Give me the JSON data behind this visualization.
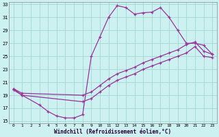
{
  "xlabel": "Windchill (Refroidissement éolien,°C)",
  "bg_color": "#cdf0f0",
  "line_color": "#993399",
  "grid_color": "#a8dada",
  "ylim": [
    15,
    33
  ],
  "xlim": [
    -0.5,
    23.5
  ],
  "yticks": [
    15,
    17,
    19,
    21,
    23,
    25,
    27,
    29,
    31,
    33
  ],
  "xticks": [
    0,
    1,
    2,
    3,
    4,
    5,
    6,
    7,
    8,
    9,
    10,
    11,
    12,
    13,
    14,
    15,
    16,
    17,
    18,
    19,
    20,
    21,
    22,
    23
  ],
  "curve1_x": [
    0,
    1,
    3,
    4,
    5,
    6,
    7,
    8,
    9,
    10,
    11,
    12,
    13,
    14,
    15,
    16,
    17,
    18,
    19,
    20,
    21,
    22,
    23
  ],
  "curve1_y": [
    20.0,
    19.0,
    17.5,
    16.5,
    15.8,
    15.5,
    15.5,
    16.0,
    25.0,
    28.0,
    31.0,
    32.8,
    32.5,
    31.5,
    31.7,
    31.8,
    32.5,
    31.0,
    29.0,
    27.0,
    27.0,
    26.7,
    25.3
  ],
  "curve2_x": [
    0,
    1,
    8,
    9,
    10,
    11,
    12,
    13,
    14,
    15,
    16,
    17,
    18,
    19,
    20,
    21,
    22,
    23
  ],
  "curve2_y": [
    20.0,
    19.3,
    19.0,
    19.5,
    20.5,
    21.5,
    22.3,
    22.8,
    23.3,
    24.0,
    24.5,
    25.0,
    25.5,
    26.0,
    26.8,
    27.2,
    25.8,
    25.3
  ],
  "curve3_x": [
    0,
    1,
    8,
    9,
    10,
    11,
    12,
    13,
    14,
    15,
    16,
    17,
    18,
    19,
    20,
    21,
    22,
    23
  ],
  "curve3_y": [
    19.8,
    19.0,
    18.0,
    18.5,
    19.5,
    20.5,
    21.3,
    21.8,
    22.3,
    23.0,
    23.5,
    24.0,
    24.5,
    25.0,
    25.5,
    26.5,
    25.0,
    24.8
  ]
}
